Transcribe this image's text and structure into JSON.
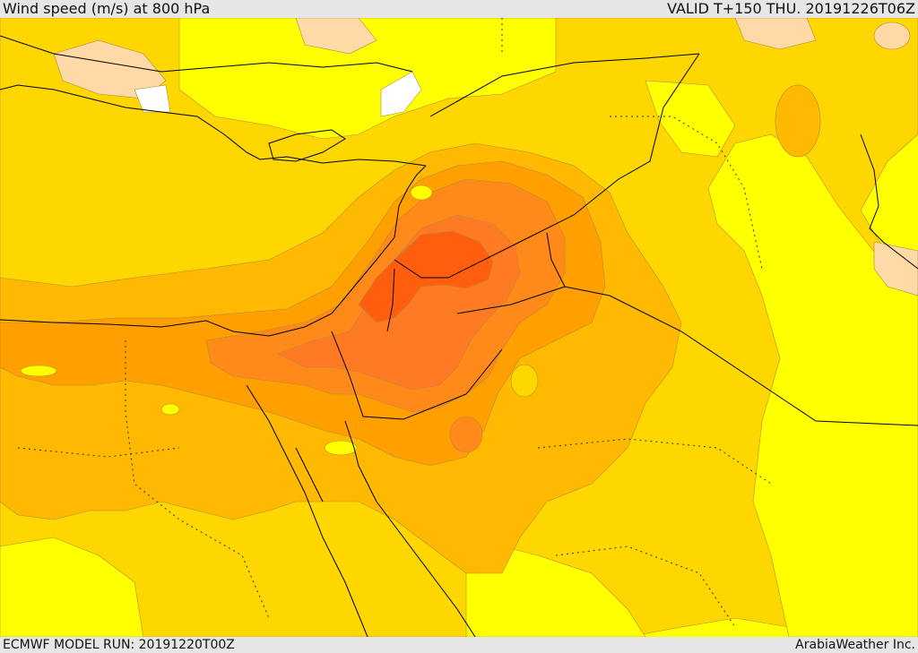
{
  "header": {
    "title": "Wind speed (m/s) at 800 hPa",
    "valid": "VALID T+150 THU. 20191226T06Z"
  },
  "footer": {
    "model_run": "ECMWF MODEL RUN: 20191220T00Z",
    "credit": "ArabiaWeather Inc."
  },
  "colors": {
    "band_pale": "#ffd9a6",
    "band_white": "#ffffff",
    "band_yellow": "#ffff00",
    "band_gold": "#ffd700",
    "band_amber": "#ffb900",
    "band_orange": "#ff9f00",
    "band_deep_orange": "#ff8a1a",
    "band_red_orange": "#ff7a22",
    "band_core": "#ff5e0e",
    "border": "#000000"
  }
}
